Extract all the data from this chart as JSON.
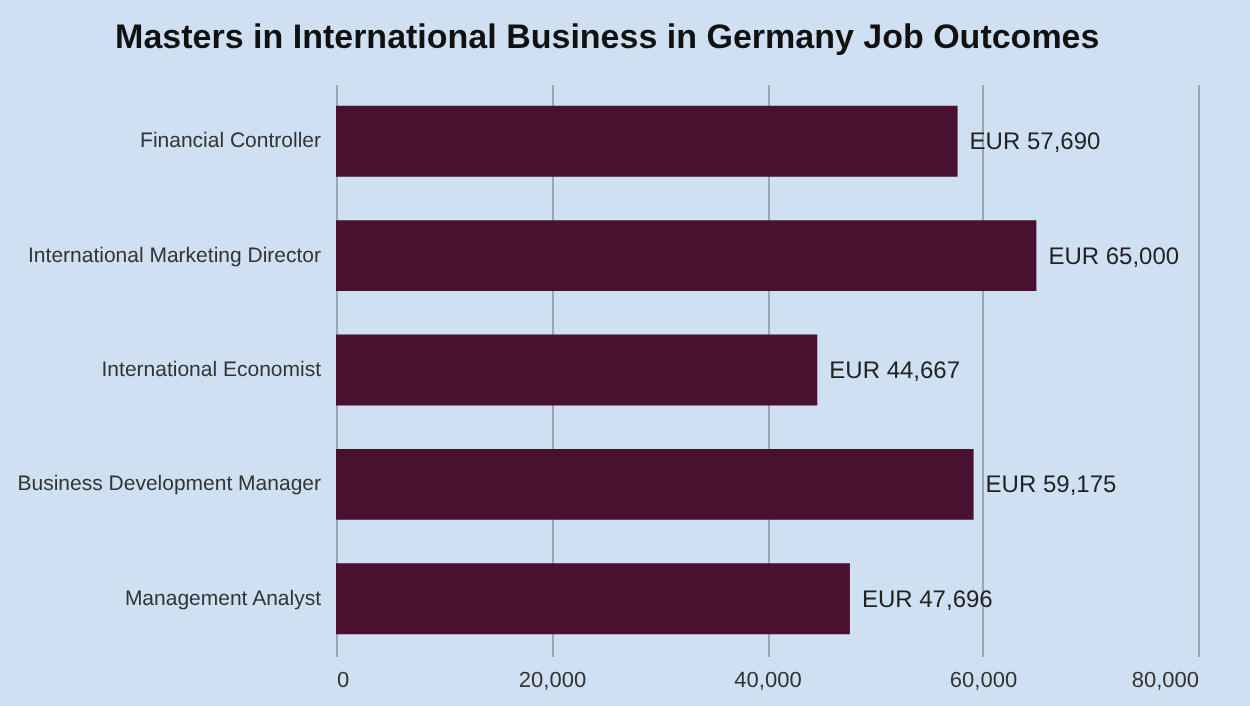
{
  "chart_data": {
    "type": "bar",
    "orientation": "horizontal",
    "title": "Masters in International Business in Germany Job Outcomes",
    "categories": [
      "Financial Controller",
      "International Marketing Director",
      "International Economist",
      "Business Development Manager",
      "Management Analyst"
    ],
    "values": [
      57690,
      65000,
      44667,
      59175,
      47696
    ],
    "value_labels": [
      "EUR 57,690",
      "EUR 65,000",
      "EUR 44,667",
      "EUR 59,175",
      "EUR 47,696"
    ],
    "color": "#4a1030",
    "xlim": [
      0,
      80000
    ],
    "xticks": [
      0,
      {
        "value": 20000,
        "label": "20,000"
      },
      {
        "value": 40000,
        "label": "40,000"
      },
      {
        "value": 60000,
        "label": "60,000"
      },
      {
        "value": 80000,
        "label": "80,000"
      }
    ],
    "grid": "x"
  }
}
